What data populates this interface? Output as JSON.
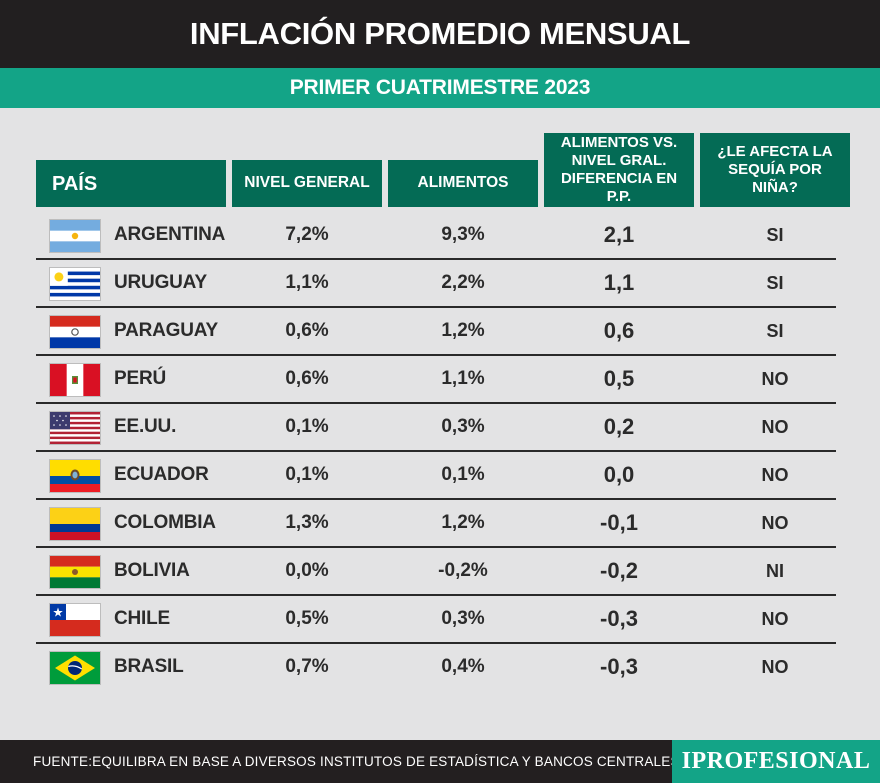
{
  "title": "INFLACIÓN PROMEDIO MENSUAL",
  "subtitle": "PRIMER CUATRIMESTRE 2023",
  "headers": {
    "pais": "PAÍS",
    "nivel_general": "NIVEL GENERAL",
    "alimentos": "ALIMENTOS",
    "diferencia": "ALIMENTOS VS. NIVEL GRAL. DIFERENCIA EN P.P.",
    "sequia": "¿LE AFECTA LA SEQUÍA POR NIÑA?"
  },
  "rows": [
    {
      "country": "ARGENTINA",
      "flag": "argentina-flag-icon",
      "nivel": "7,2%",
      "alimentos": "9,3%",
      "diferencia": "2,1",
      "sequia": "SI"
    },
    {
      "country": "URUGUAY",
      "flag": "uruguay-flag-icon",
      "nivel": "1,1%",
      "alimentos": "2,2%",
      "diferencia": "1,1",
      "sequia": "SI"
    },
    {
      "country": "PARAGUAY",
      "flag": "paraguay-flag-icon",
      "nivel": "0,6%",
      "alimentos": "1,2%",
      "diferencia": "0,6",
      "sequia": "SI"
    },
    {
      "country": "PERÚ",
      "flag": "peru-flag-icon",
      "nivel": "0,6%",
      "alimentos": "1,1%",
      "diferencia": "0,5",
      "sequia": "NO"
    },
    {
      "country": "EE.UU.",
      "flag": "usa-flag-icon",
      "nivel": "0,1%",
      "alimentos": "0,3%",
      "diferencia": "0,2",
      "sequia": "NO"
    },
    {
      "country": "ECUADOR",
      "flag": "ecuador-flag-icon",
      "nivel": "0,1%",
      "alimentos": "0,1%",
      "diferencia": "0,0",
      "sequia": "NO"
    },
    {
      "country": "COLOMBIA",
      "flag": "colombia-flag-icon",
      "nivel": "1,3%",
      "alimentos": "1,2%",
      "diferencia": "-0,1",
      "sequia": "NO"
    },
    {
      "country": "BOLIVIA",
      "flag": "bolivia-flag-icon",
      "nivel": "0,0%",
      "alimentos": "-0,2%",
      "diferencia": "-0,2",
      "sequia": "NI"
    },
    {
      "country": "CHILE",
      "flag": "chile-flag-icon",
      "nivel": "0,5%",
      "alimentos": "0,3%",
      "diferencia": "-0,3",
      "sequia": "NO"
    },
    {
      "country": "BRASIL",
      "flag": "brasil-flag-icon",
      "nivel": "0,7%",
      "alimentos": "0,4%",
      "diferencia": "-0,3",
      "sequia": "NO"
    }
  ],
  "footer": {
    "source": "FUENTE:EQUILIBRA EN BASE A DIVERSOS INSTITUTOS DE ESTADÍSTICA Y BANCOS CENTRALES",
    "logo": "IPROFESIONAL"
  },
  "colors": {
    "header_dark": "#221f20",
    "accent_green": "#13a487",
    "table_header_green": "#046b55",
    "background": "#e3e3e4"
  }
}
